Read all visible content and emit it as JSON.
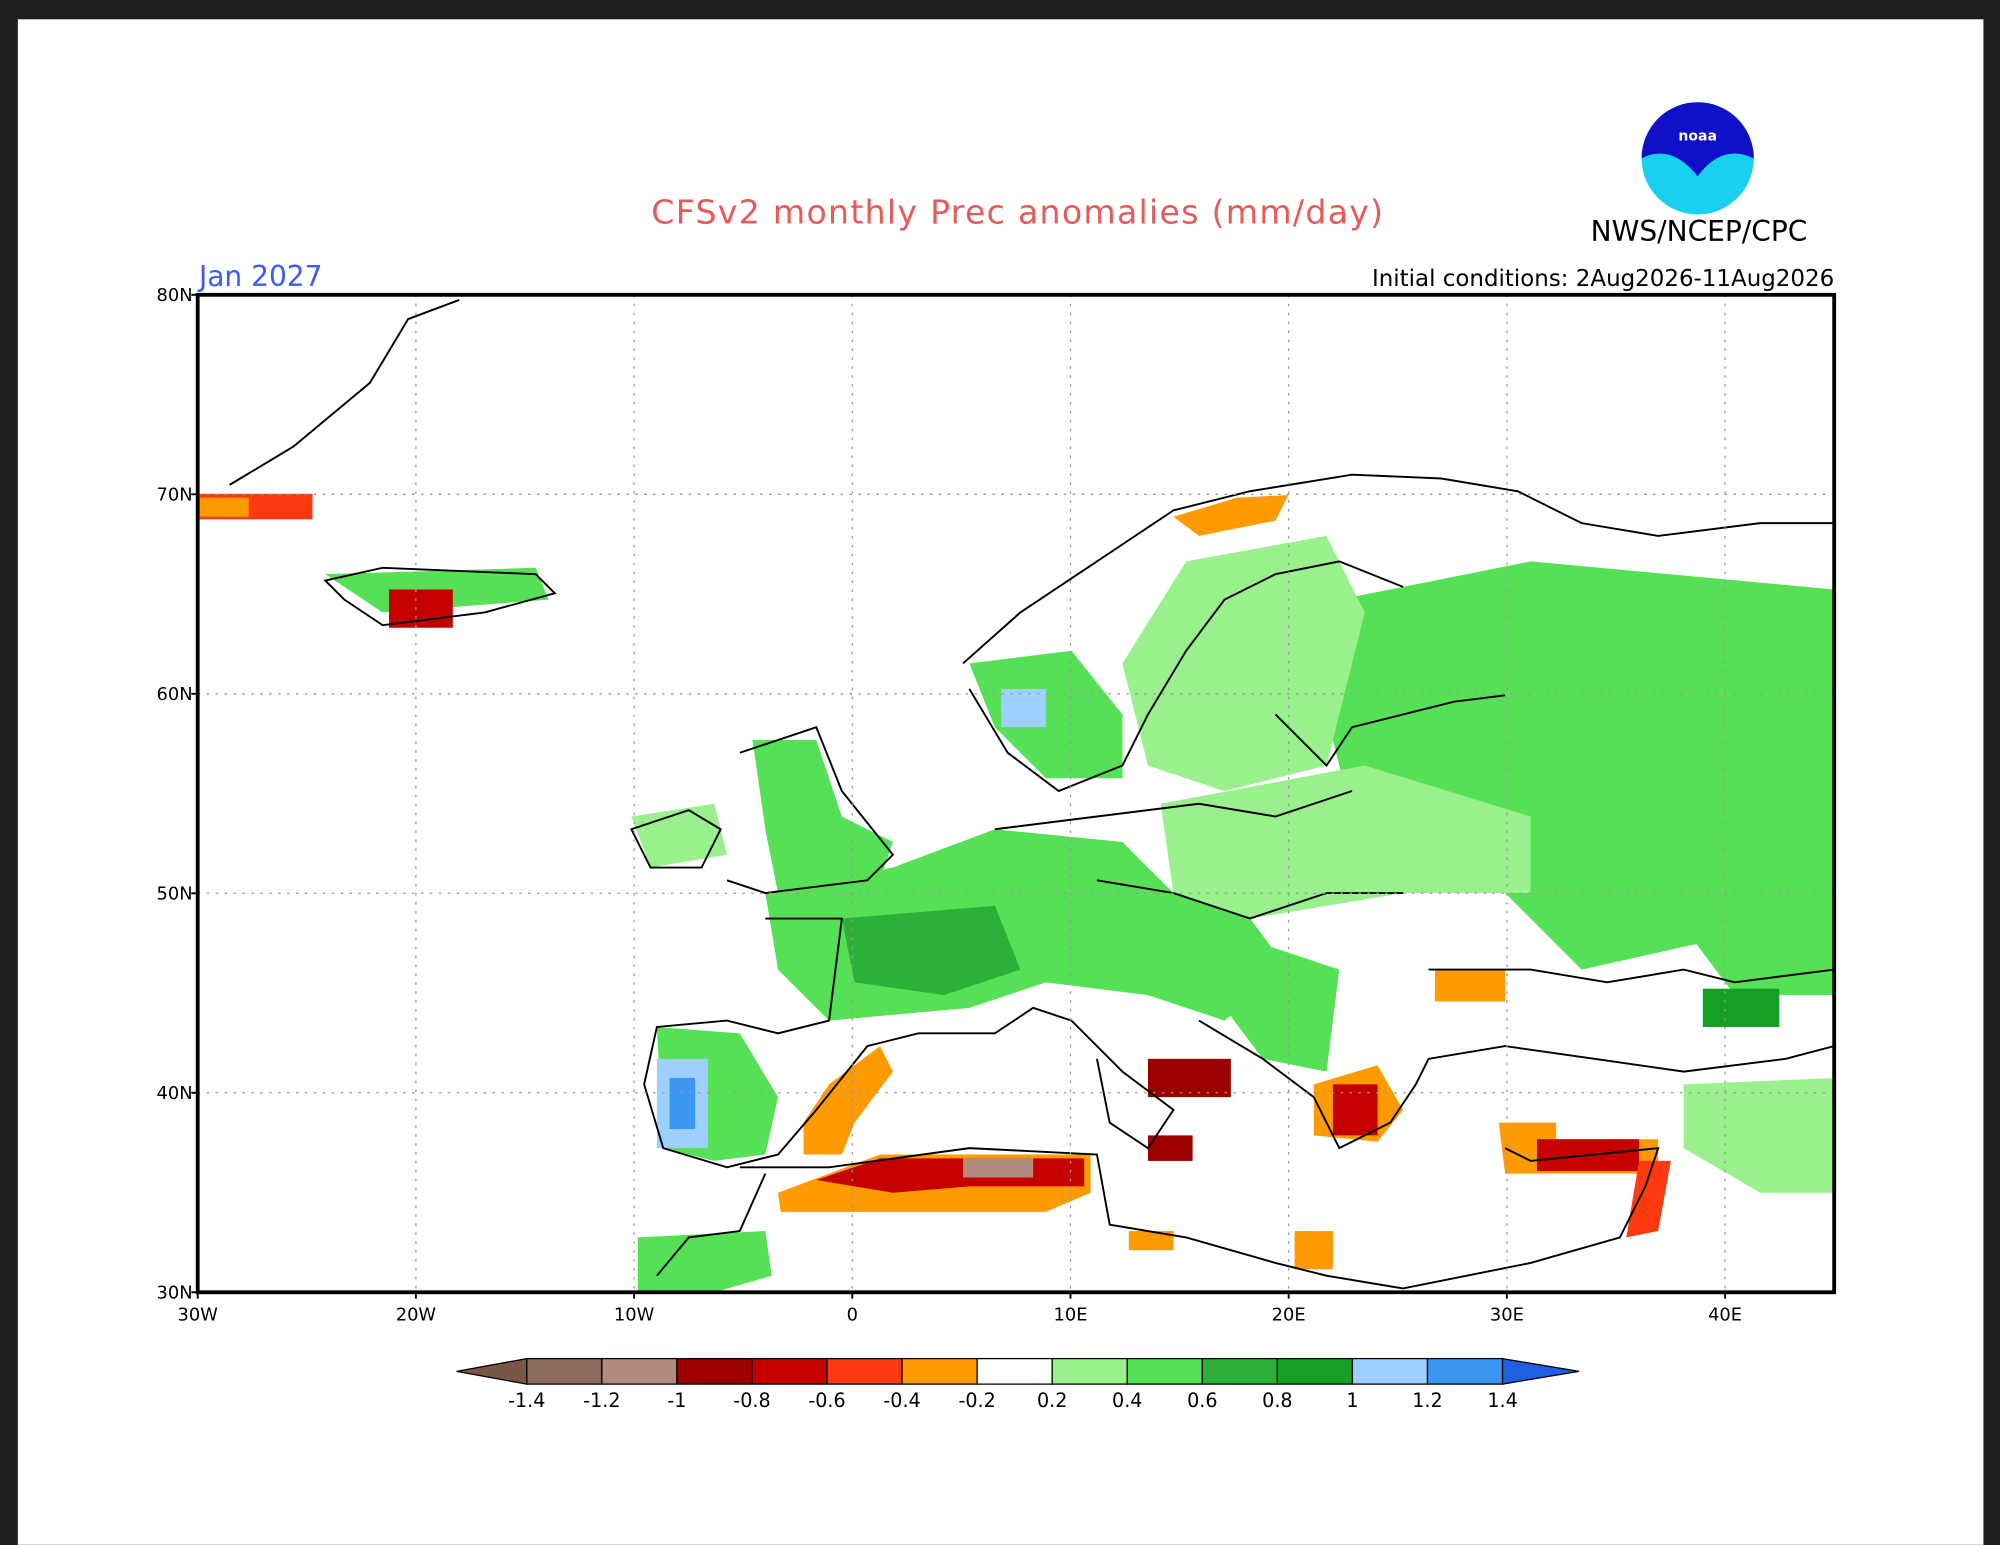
{
  "title": "CFSv2 monthly Prec anomalies (mm/day)",
  "valid_month": "Jan 2027",
  "agency": "NWS/NCEP/CPC",
  "initial_conditions": "Initial conditions: 2Aug2026-11Aug2026",
  "lat_labels": [
    "80N",
    "70N",
    "60N",
    "50N",
    "40N",
    "30N"
  ],
  "lon_labels": [
    "30W",
    "20W",
    "10W",
    "0",
    "10E",
    "20E",
    "30E",
    "40E"
  ],
  "colorbar": {
    "labels": [
      "-1.4",
      "-1.2",
      "-1",
      "-0.8",
      "-0.6",
      "-0.4",
      "-0.2",
      "0.2",
      "0.4",
      "0.6",
      "0.8",
      "1",
      "1.2",
      "1.4"
    ],
    "colors": [
      "#7a5646",
      "#8e6a5c",
      "#b38c80",
      "#9c0000",
      "#c40000",
      "#ff3a10",
      "#ff9a00",
      "#ffffff",
      "#99f08c",
      "#55e055",
      "#2bb13a",
      "#15a024",
      "#9ed0ff",
      "#3a96f0",
      "#2060e0"
    ]
  }
}
